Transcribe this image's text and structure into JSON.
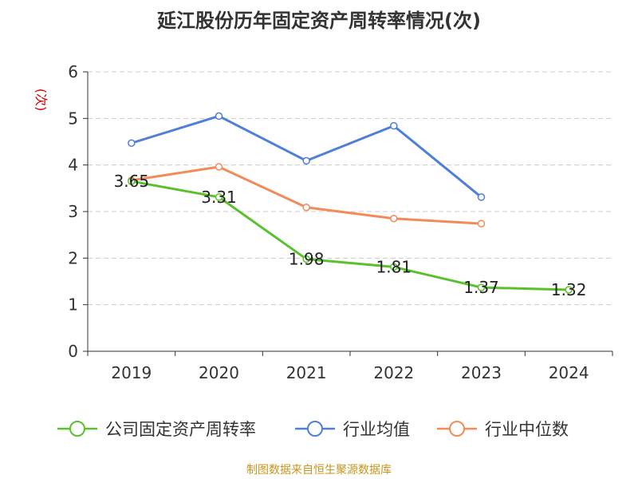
{
  "chart_data": {
    "type": "line",
    "title": "延江股份历年固定资产周转率情况(次)",
    "ylabel": "(次)",
    "xlabel": "",
    "categories": [
      "2019",
      "2020",
      "2021",
      "2022",
      "2023",
      "2024"
    ],
    "ylim": [
      0,
      6
    ],
    "yticks": [
      "0",
      "1",
      "2",
      "3",
      "4",
      "5",
      "6"
    ],
    "grid": true,
    "legend_position": "bottom",
    "series": [
      {
        "name": "公司固定资产周转率",
        "color": "#5ac12d",
        "values": [
          3.65,
          3.31,
          1.98,
          1.81,
          1.37,
          1.32
        ],
        "labels": [
          "3.65",
          "3.31",
          "1.98",
          "1.81",
          "1.37",
          "1.32"
        ]
      },
      {
        "name": "行业均值",
        "color": "#4f7fd9",
        "values": [
          4.47,
          5.05,
          4.09,
          4.84,
          3.31,
          null
        ]
      },
      {
        "name": "行业中位数",
        "color": "#f18c5a",
        "values": [
          3.67,
          3.96,
          3.09,
          2.85,
          2.74,
          null
        ]
      }
    ]
  },
  "source": "制图数据来自恒生聚源数据库",
  "colors": {
    "axis": "#333333",
    "grid": "#cccccc",
    "ylabel": "#cc0000",
    "source": "#c8961e"
  }
}
